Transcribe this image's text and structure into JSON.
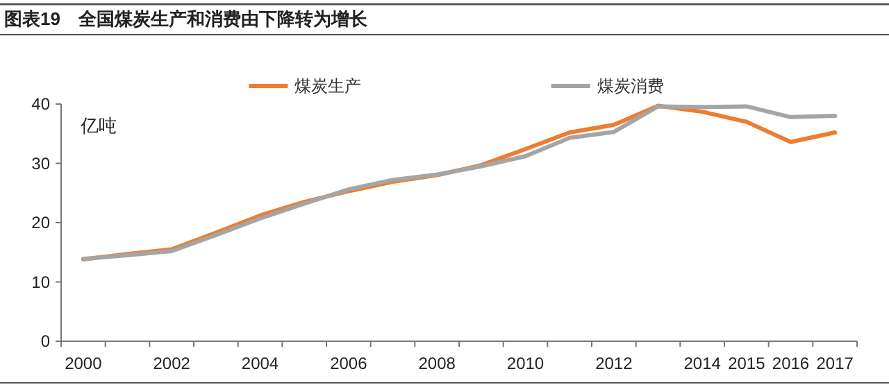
{
  "chart_data": {
    "type": "line",
    "title": "图表19　全国煤炭生产和消费由下降转为增长",
    "ylabel": "亿吨",
    "categories": [
      "2000",
      null,
      "2002",
      null,
      "2004",
      null,
      "2006",
      null,
      "2008",
      null,
      "2010",
      null,
      "2012",
      null,
      "2014",
      "2015",
      "2016",
      "2017"
    ],
    "series": [
      {
        "name": "煤炭生产",
        "color": "#ed7d31",
        "values": [
          13.8,
          14.7,
          15.5,
          18.3,
          21.2,
          23.5,
          25.3,
          26.9,
          28.0,
          29.7,
          32.4,
          35.2,
          36.5,
          39.7,
          38.7,
          37.0,
          33.6,
          35.2
        ]
      },
      {
        "name": "煤炭消费",
        "color": "#a5a5a5",
        "values": [
          13.9,
          14.5,
          15.2,
          17.9,
          20.7,
          23.2,
          25.6,
          27.2,
          28.1,
          29.5,
          31.2,
          34.3,
          35.3,
          39.6,
          39.5,
          39.6,
          37.8,
          38.0
        ]
      }
    ],
    "ylim": [
      0,
      40
    ],
    "yticks": [
      0,
      10,
      20,
      30,
      40
    ],
    "grid": false,
    "legend": "top",
    "marker": "none",
    "line_style": "solid"
  }
}
